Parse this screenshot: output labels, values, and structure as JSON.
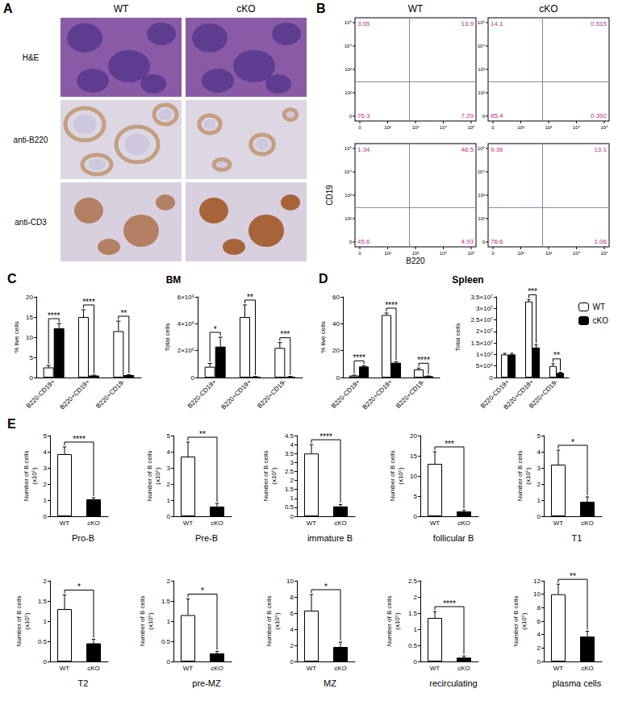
{
  "panels": {
    "A": {
      "panel_label": "A",
      "columns": [
        "WT",
        "cKO"
      ],
      "rows": [
        "H&E",
        "anti-B220",
        "anti-CD3"
      ]
    },
    "B": {
      "panel_label": "B",
      "columns": [
        "WT",
        "cKO"
      ],
      "x_label": "B220",
      "y_label": "CD19",
      "x_ticks": [
        "0",
        "10²",
        "10³",
        "10⁴",
        "10⁵"
      ],
      "y_ticks": [
        "0",
        "10²",
        "10³",
        "10⁴",
        "10⁵"
      ],
      "plots": [
        [
          {
            "upper_left": 3.05,
            "upper_right": 13.9,
            "lower_left": 76.3,
            "lower_right": 7.29
          },
          {
            "upper_left": 14.1,
            "upper_right": 0.515,
            "lower_left": 85.4,
            "lower_right": 0.392
          }
        ],
        [
          {
            "upper_left": 1.34,
            "upper_right": 48.5,
            "lower_left": 45.6,
            "lower_right": 4.93
          },
          {
            "upper_left": 9.36,
            "upper_right": 13.1,
            "lower_left": 76.6,
            "lower_right": 1.06
          }
        ]
      ]
    }
  },
  "chart_data": [
    {
      "type": "bar",
      "panel_label": "C",
      "title": "BM",
      "ylabel": "% live cells",
      "categories": [
        "B220-CD19+",
        "B220+CD19+",
        "B220+CD19-"
      ],
      "series": [
        {
          "name": "WT",
          "color": "#ffffff",
          "values": [
            2.5,
            15,
            11.5
          ],
          "errors": [
            0.5,
            1.8,
            2.5
          ]
        },
        {
          "name": "cKO",
          "color": "#000000",
          "values": [
            12.2,
            0.5,
            0.6
          ],
          "errors": [
            1.2,
            0.1,
            0.1
          ]
        }
      ],
      "significance": [
        "****",
        "****",
        "**"
      ],
      "ylim": [
        0,
        20
      ],
      "yticks": [
        0,
        5,
        10,
        15,
        20
      ]
    },
    {
      "type": "bar",
      "ylabel": "Total cells",
      "categories": [
        "B220-CD19+",
        "B220+CD19+",
        "B220+CD19-"
      ],
      "series": [
        {
          "name": "WT",
          "color": "#ffffff",
          "values": [
            800000,
            4500000,
            2200000
          ],
          "errors": [
            250000,
            900000,
            400000
          ]
        },
        {
          "name": "cKO",
          "color": "#000000",
          "values": [
            2300000,
            50000,
            60000
          ],
          "errors": [
            700000,
            20000,
            20000
          ]
        }
      ],
      "significance": [
        "*",
        "**",
        "***"
      ],
      "ylim": [
        0,
        6000000
      ],
      "yticks": [
        0,
        {
          "value": 2000000,
          "label": "2×10⁶"
        },
        {
          "value": 4000000,
          "label": "4×10⁶"
        },
        {
          "value": 6000000,
          "label": "6×10⁶"
        }
      ]
    },
    {
      "type": "bar",
      "panel_label": "D",
      "title": "Spleen",
      "ylabel": "% live cells",
      "categories": [
        "B220-CD19+",
        "B220+CD19+",
        "B220+CD19-"
      ],
      "series": [
        {
          "name": "WT",
          "color": "#ffffff",
          "values": [
            1.5,
            46.5,
            6
          ],
          "errors": [
            0.3,
            1.5,
            1
          ]
        },
        {
          "name": "cKO",
          "color": "#000000",
          "values": [
            8.2,
            11,
            1
          ],
          "errors": [
            0.6,
            0.8,
            0.2
          ]
        }
      ],
      "significance": [
        "****",
        "****",
        "****"
      ],
      "ylim": [
        0,
        60
      ],
      "yticks": [
        0,
        20,
        40,
        60
      ]
    },
    {
      "type": "bar",
      "ylabel": "Total cells",
      "legend": "upper right",
      "categories": [
        "B220-CD19+",
        "B220+CD19+",
        "B220+CD19-"
      ],
      "series": [
        {
          "name": "WT",
          "color": "#ffffff",
          "values": [
            10000000,
            33000000,
            5000000
          ],
          "errors": [
            500000,
            800000,
            1000000
          ]
        },
        {
          "name": "cKO",
          "color": "#000000",
          "values": [
            10000000,
            13000000,
            2000000
          ],
          "errors": [
            500000,
            1200000,
            300000
          ]
        }
      ],
      "significance": [
        null,
        "***",
        "**"
      ],
      "ylim": [
        0,
        35000000
      ],
      "yticks": [
        0,
        {
          "value": 5000000,
          "label": "5×10⁶"
        },
        {
          "value": 10000000,
          "label": "1×10⁷"
        },
        {
          "value": 15000000,
          "label": "1.5×10⁷"
        },
        {
          "value": 20000000,
          "label": "2×10⁷"
        },
        {
          "value": 25000000,
          "label": "2.5×10⁷"
        },
        {
          "value": 30000000,
          "label": "3×10⁷"
        },
        {
          "value": 35000000,
          "label": "3.5×10⁷"
        }
      ]
    },
    {
      "type": "bar",
      "panel_label": "E",
      "title": "Pro-B",
      "ylabel": "Number of B cells\n(x10⁵)",
      "categories": [
        "WT",
        "cKO"
      ],
      "values": [
        3.85,
        1.05
      ],
      "errors": [
        0.45,
        0.1
      ],
      "colors": [
        "#ffffff",
        "#000000"
      ],
      "significance": "****",
      "ylim": [
        0,
        5
      ],
      "yticks": [
        0,
        1,
        2,
        3,
        4,
        5
      ]
    },
    {
      "type": "bar",
      "title": "Pre-B",
      "ylabel": "Number of B cells\n(x10⁵)",
      "categories": [
        "WT",
        "cKO"
      ],
      "values": [
        3.7,
        0.6
      ],
      "errors": [
        0.9,
        0.2
      ],
      "colors": [
        "#ffffff",
        "#000000"
      ],
      "significance": "**",
      "ylim": [
        0,
        5
      ],
      "yticks": [
        0,
        1,
        2,
        3,
        4,
        5
      ]
    },
    {
      "type": "bar",
      "title": "immature B",
      "ylabel": "Number of B cells\n(x10⁵)",
      "categories": [
        "WT",
        "cKO"
      ],
      "values": [
        3.5,
        0.55
      ],
      "errors": [
        0.5,
        0.1
      ],
      "colors": [
        "#ffffff",
        "#000000"
      ],
      "significance": "****",
      "ylim": [
        0,
        4.5
      ],
      "yticks": [
        0,
        0.5,
        1,
        1.5,
        2,
        2.5,
        3,
        3.5,
        4,
        4.5
      ]
    },
    {
      "type": "bar",
      "title": "follicular B",
      "ylabel": "Number of B cells\n(x10⁵)",
      "categories": [
        "WT",
        "cKO"
      ],
      "values": [
        13,
        1.2
      ],
      "errors": [
        3,
        0.3
      ],
      "colors": [
        "#ffffff",
        "#000000"
      ],
      "significance": "***",
      "ylim": [
        0,
        20
      ],
      "yticks": [
        0,
        5,
        10,
        15,
        20
      ]
    },
    {
      "type": "bar",
      "title": "T1",
      "ylabel": "Number of B cells\n(x10⁵)",
      "categories": [
        "WT",
        "cKO"
      ],
      "values": [
        3.2,
        0.9
      ],
      "errors": [
        0.9,
        0.3
      ],
      "colors": [
        "#ffffff",
        "#000000"
      ],
      "significance": "*",
      "ylim": [
        0,
        5
      ],
      "yticks": [
        0,
        1,
        2,
        3,
        4,
        5
      ]
    },
    {
      "type": "bar",
      "title": "T2",
      "ylabel": "Number of B cells\n(x10⁵)",
      "categories": [
        "WT",
        "cKO"
      ],
      "values": [
        1.3,
        0.45
      ],
      "errors": [
        0.35,
        0.1
      ],
      "colors": [
        "#ffffff",
        "#000000"
      ],
      "significance": "*",
      "ylim": [
        0,
        2
      ],
      "yticks": [
        0,
        0.5,
        1,
        1.5,
        2
      ]
    },
    {
      "type": "bar",
      "title": "pre-MZ",
      "ylabel": "Number of B cells\n(x10⁵)",
      "categories": [
        "WT",
        "cKO"
      ],
      "values": [
        1.15,
        0.2
      ],
      "errors": [
        0.4,
        0.05
      ],
      "colors": [
        "#ffffff",
        "#000000"
      ],
      "significance": "*",
      "ylim": [
        0,
        2
      ],
      "yticks": [
        0,
        0.5,
        1,
        1.5,
        2
      ]
    },
    {
      "type": "bar",
      "title": "MZ",
      "ylabel": "Number of B cells\n(x10⁵)",
      "categories": [
        "WT",
        "cKO"
      ],
      "values": [
        6.3,
        1.8
      ],
      "errors": [
        2,
        0.6
      ],
      "colors": [
        "#ffffff",
        "#000000"
      ],
      "significance": "*",
      "ylim": [
        0,
        10
      ],
      "yticks": [
        0,
        2,
        4,
        6,
        8,
        10
      ]
    },
    {
      "type": "bar",
      "title": "recirculating",
      "ylabel": "Number of B cells\n(x10⁵)",
      "categories": [
        "WT",
        "cKO"
      ],
      "values": [
        1.35,
        0.12
      ],
      "errors": [
        0.2,
        0.05
      ],
      "colors": [
        "#ffffff",
        "#000000"
      ],
      "significance": "****",
      "ylim": [
        0,
        2.5
      ],
      "yticks": [
        0,
        0.5,
        1,
        1.5,
        2,
        2.5
      ]
    },
    {
      "type": "bar",
      "title": "plasma cells",
      "ylabel": "Number of B cells\n(x10⁵)",
      "categories": [
        "WT",
        "cKO"
      ],
      "values": [
        10,
        3.7
      ],
      "errors": [
        1.5,
        0.8
      ],
      "colors": [
        "#ffffff",
        "#000000"
      ],
      "significance": "**",
      "ylim": [
        0,
        12
      ],
      "yticks": [
        0,
        2,
        4,
        6,
        8,
        10,
        12
      ]
    }
  ]
}
